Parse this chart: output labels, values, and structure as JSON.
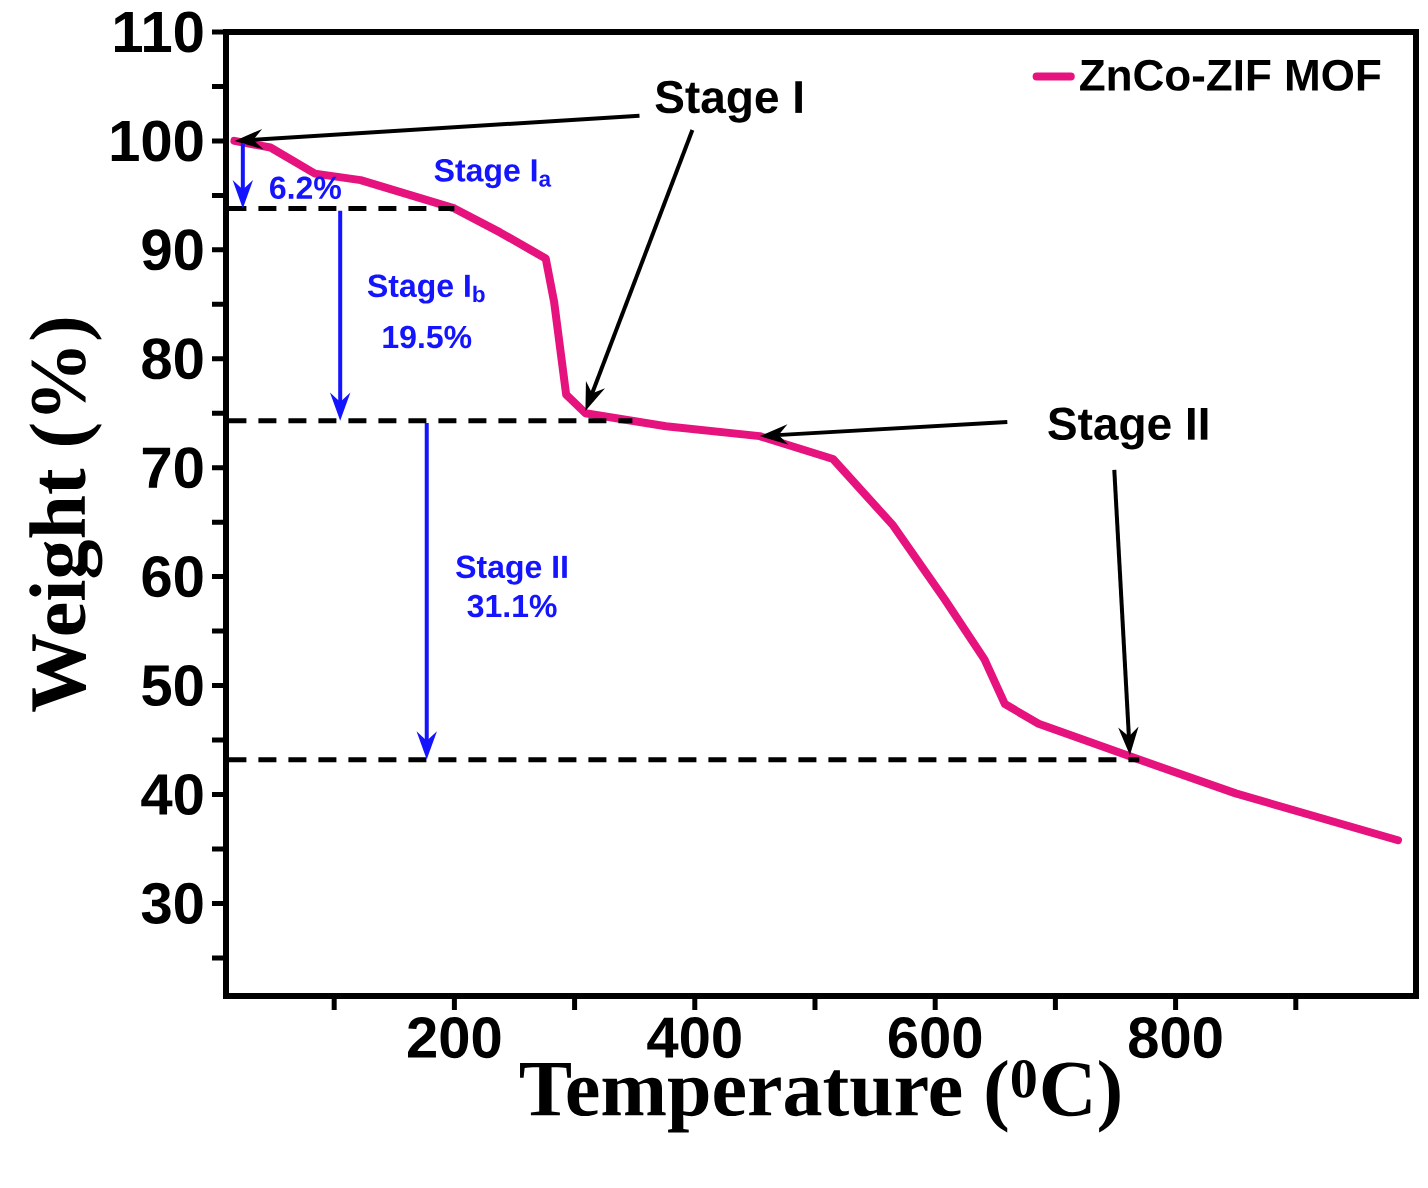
{
  "chart_data": {
    "type": "line",
    "xlabel": "Temperature ($^{0}$C)",
    "ylabel": "Weight (%)",
    "xlim": [
      10,
      1000
    ],
    "ylim": [
      21.5,
      110
    ],
    "xticks": [
      {
        "value": 100,
        "label": null
      },
      200,
      {
        "value": 300,
        "label": null
      },
      400,
      {
        "value": 500,
        "label": null
      },
      600,
      {
        "value": 700,
        "label": null
      },
      800,
      {
        "value": 900,
        "label": null
      }
    ],
    "yticks": [
      {
        "value": 25,
        "label": null
      },
      30,
      {
        "value": 35,
        "label": null
      },
      40,
      {
        "value": 45,
        "label": null
      },
      50,
      {
        "value": 55,
        "label": null
      },
      60,
      {
        "value": 65,
        "label": null
      },
      70,
      {
        "value": 75,
        "label": null
      },
      80,
      {
        "value": 85,
        "label": null
      },
      90,
      {
        "value": 95,
        "label": null
      },
      100,
      {
        "value": 105,
        "label": null
      },
      110
    ],
    "series": [
      {
        "name": "ZnCo-ZIF MOF",
        "color": "#e6137f",
        "x": [
          17,
          47,
          84,
          122,
          200,
          238,
          276,
          283,
          293,
          309,
          376,
          454,
          515,
          565,
          608,
          641,
          658,
          686,
          762,
          850,
          985
        ],
        "values": [
          100,
          99.4,
          97.0,
          96.4,
          93.8,
          91.6,
          89.2,
          85.2,
          76.7,
          75.0,
          73.8,
          72.9,
          70.8,
          64.7,
          57.9,
          52.4,
          48.3,
          46.5,
          43.5,
          40.1,
          35.8
        ]
      }
    ],
    "ref_lines": [
      {
        "axis": "y",
        "value": 93.8,
        "color": "#000000",
        "line_style": "dashed"
      },
      {
        "axis": "y",
        "value": 74.3,
        "color": "#000000",
        "line_style": "dashed"
      },
      {
        "axis": "y",
        "value": 43.2,
        "color": "#000000",
        "line_style": "dashed"
      }
    ],
    "annotations": [
      {
        "text": "Stage I",
        "x": 17,
        "y": 100
      },
      {
        "text": "Stage II",
        "x": 454,
        "y": 72.9
      },
      "Stage I$_{a}$",
      {
        "text": "6.2%",
        "x": 24,
        "y": 93.8
      },
      "Stage I$_{b}$",
      {
        "text": "19.5%",
        "x": 105,
        "y": 74.3
      },
      "Stage II",
      "31.1%"
    ],
    "legend": "top right",
    "line_style": "solid",
    "marker": "none",
    "grid": false
  }
}
